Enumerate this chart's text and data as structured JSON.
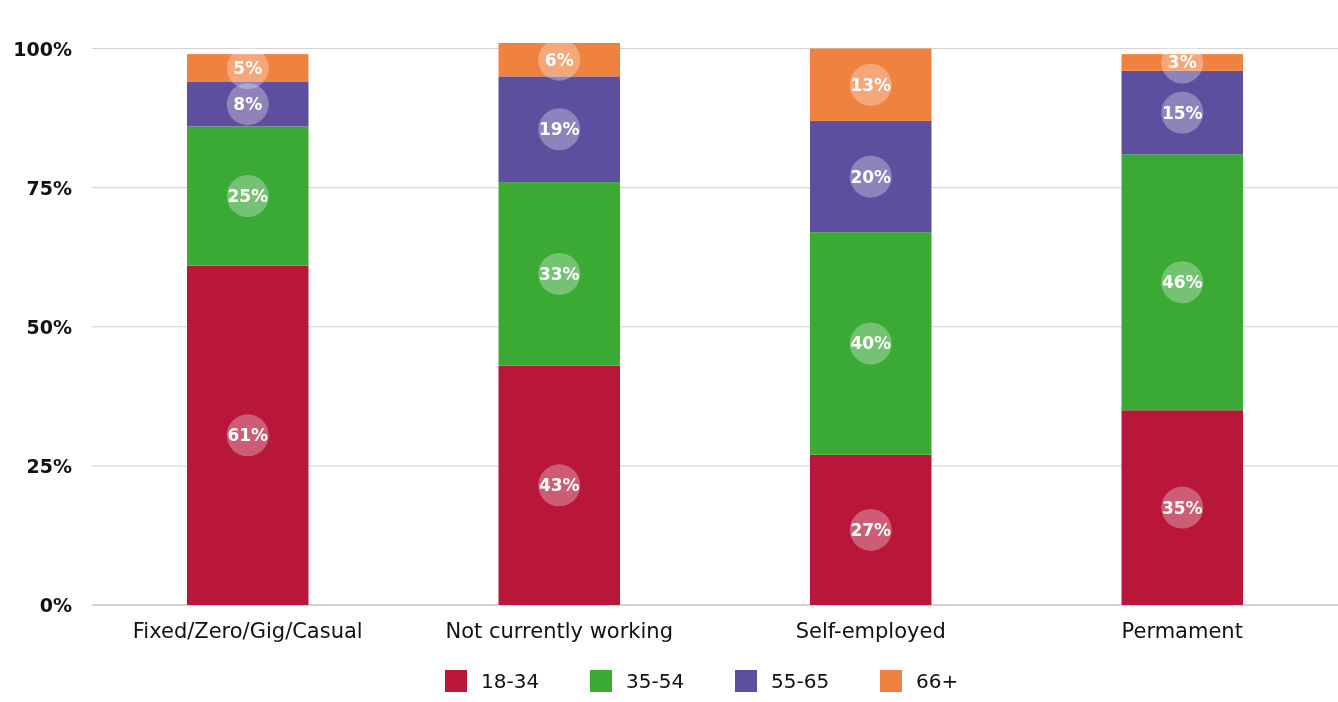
{
  "chart_data": {
    "type": "bar",
    "stacked": true,
    "categories": [
      "Fixed/Zero/Gig/Casual",
      "Not currently working",
      "Self-employed",
      "Permament"
    ],
    "series": [
      {
        "name": "18-34",
        "color": "#b8173a",
        "values": [
          61,
          43,
          27,
          35
        ],
        "value_labels": [
          "61%",
          "43%",
          "27%",
          "35%"
        ]
      },
      {
        "name": "35-54",
        "color": "#3aaa35",
        "values": [
          25,
          33,
          40,
          46
        ],
        "value_labels": [
          "25%",
          "33%",
          "40%",
          "46%"
        ]
      },
      {
        "name": "55-65",
        "color": "#5e4f9e",
        "values": [
          8,
          19,
          20,
          15
        ],
        "value_labels": [
          "8%",
          "19%",
          "20%",
          "15%"
        ]
      },
      {
        "name": "66+",
        "color": "#f08240",
        "values": [
          5,
          6,
          13,
          3
        ],
        "value_labels": [
          "5%",
          "6%",
          "13%",
          "3%"
        ]
      }
    ],
    "ylim": [
      0,
      101
    ],
    "yticks": [
      {
        "value": 0,
        "label": "0%"
      },
      {
        "value": 25,
        "label": "25%"
      },
      {
        "value": 50,
        "label": "50%"
      },
      {
        "value": 75,
        "label": "75%"
      },
      {
        "value": 100,
        "label": "100%"
      }
    ],
    "grid": "y",
    "legend": "bottom"
  }
}
